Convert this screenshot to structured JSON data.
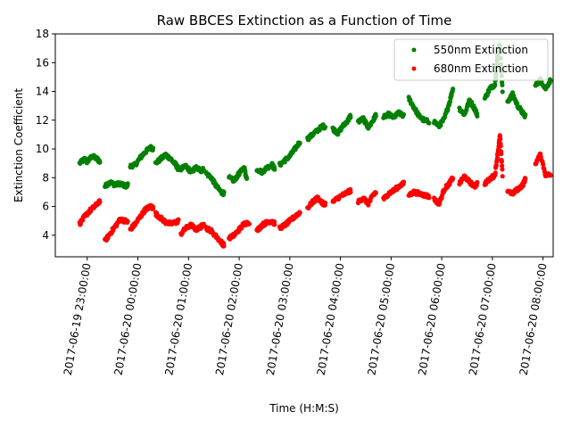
{
  "chart_data": {
    "type": "scatter",
    "title": "Raw BBCES Extinction as a Function of Time",
    "xlabel": "Time (H:M:S)",
    "ylabel": "Extinction Coefficient",
    "x_unit": "hours after 2017-06-19 23:00:00",
    "xlim": [
      -0.63,
      9.2
    ],
    "ylim": [
      2.5,
      18
    ],
    "yticks": [
      4,
      6,
      8,
      10,
      12,
      14,
      16,
      18
    ],
    "xticks": [
      {
        "x": 0,
        "label": "2017-06-19 23:00:00"
      },
      {
        "x": 1,
        "label": "2017-06-20 00:00:00"
      },
      {
        "x": 2,
        "label": "2017-06-20 01:00:00"
      },
      {
        "x": 3,
        "label": "2017-06-20 02:00:00"
      },
      {
        "x": 4,
        "label": "2017-06-20 03:00:00"
      },
      {
        "x": 5,
        "label": "2017-06-20 04:00:00"
      },
      {
        "x": 6,
        "label": "2017-06-20 05:00:00"
      },
      {
        "x": 7,
        "label": "2017-06-20 06:00:00"
      },
      {
        "x": 8,
        "label": "2017-06-20 07:00:00"
      },
      {
        "x": 9,
        "label": "2017-06-20 08:00:00"
      }
    ],
    "legend_position": "top-right",
    "grid": false,
    "series": [
      {
        "name": "550nm Extinction",
        "color": "#008000",
        "marker": "circle",
        "segments": [
          [
            [
              -0.15,
              9.0
            ],
            [
              -0.05,
              9.3
            ],
            [
              0.0,
              9.1
            ],
            [
              0.1,
              9.5
            ],
            [
              0.2,
              9.3
            ],
            [
              0.25,
              9.1
            ]
          ],
          [
            [
              0.35,
              7.4
            ],
            [
              0.45,
              7.7
            ],
            [
              0.55,
              7.5
            ],
            [
              0.65,
              7.6
            ],
            [
              0.75,
              7.4
            ],
            [
              0.8,
              7.5
            ]
          ],
          [
            [
              0.85,
              8.8
            ],
            [
              0.95,
              8.9
            ],
            [
              1.05,
              9.4
            ],
            [
              1.15,
              9.8
            ],
            [
              1.25,
              10.1
            ],
            [
              1.3,
              10.0
            ]
          ],
          [
            [
              1.35,
              9.0
            ],
            [
              1.45,
              9.3
            ],
            [
              1.55,
              9.6
            ],
            [
              1.65,
              9.3
            ],
            [
              1.75,
              8.9
            ],
            [
              1.8,
              8.6
            ]
          ],
          [
            [
              1.85,
              8.6
            ],
            [
              1.95,
              8.8
            ],
            [
              2.05,
              8.4
            ],
            [
              2.15,
              8.7
            ],
            [
              2.25,
              8.5
            ],
            [
              2.3,
              8.6
            ]
          ],
          [
            [
              2.35,
              8.3
            ],
            [
              2.45,
              8.0
            ],
            [
              2.55,
              7.4
            ],
            [
              2.65,
              7.0
            ],
            [
              2.7,
              6.9
            ]
          ],
          [
            [
              2.8,
              8.0
            ],
            [
              2.9,
              7.8
            ],
            [
              3.0,
              8.3
            ],
            [
              3.1,
              8.7
            ],
            [
              3.15,
              7.9
            ]
          ],
          [
            [
              3.35,
              8.6
            ],
            [
              3.45,
              8.4
            ],
            [
              3.55,
              8.7
            ],
            [
              3.65,
              8.9
            ],
            [
              3.7,
              8.6
            ]
          ],
          [
            [
              3.8,
              8.9
            ],
            [
              3.9,
              9.2
            ],
            [
              4.0,
              9.5
            ],
            [
              4.1,
              10.0
            ],
            [
              4.2,
              10.5
            ]
          ],
          [
            [
              4.35,
              10.7
            ],
            [
              4.45,
              11.0
            ],
            [
              4.55,
              11.3
            ],
            [
              4.65,
              11.6
            ],
            [
              4.7,
              11.5
            ]
          ],
          [
            [
              4.85,
              11.4
            ],
            [
              4.95,
              11.1
            ],
            [
              5.05,
              11.6
            ],
            [
              5.15,
              12.0
            ],
            [
              5.2,
              12.3
            ]
          ],
          [
            [
              5.35,
              11.9
            ],
            [
              5.45,
              12.1
            ],
            [
              5.55,
              11.5
            ],
            [
              5.65,
              12.0
            ],
            [
              5.7,
              12.4
            ]
          ],
          [
            [
              5.85,
              12.2
            ],
            [
              5.95,
              12.4
            ],
            [
              6.05,
              12.2
            ],
            [
              6.15,
              12.5
            ],
            [
              6.25,
              12.3
            ]
          ],
          [
            [
              6.35,
              13.5
            ],
            [
              6.45,
              12.9
            ],
            [
              6.55,
              12.3
            ],
            [
              6.65,
              12.0
            ],
            [
              6.75,
              11.9
            ]
          ],
          [
            [
              6.85,
              11.9
            ],
            [
              6.95,
              11.6
            ],
            [
              7.05,
              12.1
            ],
            [
              7.15,
              13.2
            ],
            [
              7.22,
              14.2
            ]
          ],
          [
            [
              7.35,
              12.8
            ],
            [
              7.45,
              12.4
            ],
            [
              7.55,
              13.4
            ],
            [
              7.65,
              12.8
            ],
            [
              7.7,
              12.4
            ]
          ],
          [
            [
              7.85,
              13.5
            ],
            [
              7.95,
              14.2
            ],
            [
              8.05,
              14.5
            ],
            [
              8.1,
              16.5
            ],
            [
              8.15,
              17.3
            ],
            [
              8.2,
              14.0
            ]
          ],
          [
            [
              8.3,
              13.3
            ],
            [
              8.4,
              13.8
            ],
            [
              8.5,
              13.0
            ],
            [
              8.6,
              12.5
            ],
            [
              8.65,
              12.3
            ]
          ],
          [
            [
              8.85,
              14.4
            ],
            [
              8.95,
              14.8
            ],
            [
              9.05,
              14.2
            ],
            [
              9.15,
              14.8
            ]
          ]
        ]
      },
      {
        "name": "680nm Extinction",
        "color": "#ff0000",
        "marker": "circle",
        "segments": [
          [
            [
              -0.15,
              4.8
            ],
            [
              -0.05,
              5.3
            ],
            [
              0.05,
              5.7
            ],
            [
              0.15,
              6.0
            ],
            [
              0.25,
              6.4
            ]
          ],
          [
            [
              0.35,
              3.6
            ],
            [
              0.45,
              4.1
            ],
            [
              0.55,
              4.6
            ],
            [
              0.65,
              5.1
            ],
            [
              0.75,
              5.0
            ],
            [
              0.8,
              4.9
            ]
          ],
          [
            [
              0.85,
              4.4
            ],
            [
              0.95,
              4.8
            ],
            [
              1.05,
              5.3
            ],
            [
              1.15,
              5.8
            ],
            [
              1.25,
              6.0
            ],
            [
              1.3,
              5.9
            ]
          ],
          [
            [
              1.35,
              5.5
            ],
            [
              1.45,
              5.2
            ],
            [
              1.55,
              4.9
            ],
            [
              1.65,
              4.8
            ],
            [
              1.75,
              4.9
            ],
            [
              1.8,
              5.0
            ]
          ],
          [
            [
              1.85,
              4.1
            ],
            [
              1.95,
              4.5
            ],
            [
              2.05,
              4.7
            ],
            [
              2.15,
              4.4
            ],
            [
              2.25,
              4.6
            ],
            [
              2.3,
              4.8
            ]
          ],
          [
            [
              2.35,
              4.5
            ],
            [
              2.45,
              4.3
            ],
            [
              2.55,
              3.9
            ],
            [
              2.65,
              3.5
            ],
            [
              2.7,
              3.3
            ]
          ],
          [
            [
              2.8,
              3.8
            ],
            [
              2.9,
              4.0
            ],
            [
              3.0,
              4.4
            ],
            [
              3.1,
              4.8
            ],
            [
              3.2,
              4.9
            ]
          ],
          [
            [
              3.35,
              4.3
            ],
            [
              3.45,
              4.7
            ],
            [
              3.55,
              4.9
            ],
            [
              3.65,
              5.0
            ],
            [
              3.7,
              4.8
            ]
          ],
          [
            [
              3.8,
              4.5
            ],
            [
              3.9,
              4.7
            ],
            [
              4.0,
              5.0
            ],
            [
              4.1,
              5.3
            ],
            [
              4.2,
              5.6
            ]
          ],
          [
            [
              4.35,
              5.9
            ],
            [
              4.45,
              6.3
            ],
            [
              4.55,
              6.6
            ],
            [
              4.65,
              6.2
            ],
            [
              4.7,
              6.2
            ]
          ],
          [
            [
              4.85,
              6.3
            ],
            [
              4.95,
              6.6
            ],
            [
              5.05,
              6.8
            ],
            [
              5.15,
              7.0
            ],
            [
              5.2,
              7.1
            ]
          ],
          [
            [
              5.35,
              6.3
            ],
            [
              5.45,
              6.6
            ],
            [
              5.55,
              6.2
            ],
            [
              5.65,
              6.8
            ],
            [
              5.7,
              7.0
            ]
          ],
          [
            [
              5.85,
              6.5
            ],
            [
              5.95,
              6.9
            ],
            [
              6.05,
              7.1
            ],
            [
              6.15,
              7.4
            ],
            [
              6.25,
              7.6
            ]
          ],
          [
            [
              6.35,
              6.8
            ],
            [
              6.45,
              7.0
            ],
            [
              6.55,
              6.9
            ],
            [
              6.65,
              6.8
            ],
            [
              6.75,
              6.7
            ]
          ],
          [
            [
              6.85,
              6.5
            ],
            [
              6.95,
              6.2
            ],
            [
              7.05,
              7.2
            ],
            [
              7.15,
              7.6
            ],
            [
              7.22,
              8.0
            ]
          ],
          [
            [
              7.35,
              7.6
            ],
            [
              7.45,
              8.1
            ],
            [
              7.55,
              7.7
            ],
            [
              7.65,
              7.4
            ],
            [
              7.7,
              7.6
            ]
          ],
          [
            [
              7.85,
              7.6
            ],
            [
              7.95,
              7.9
            ],
            [
              8.05,
              8.2
            ],
            [
              8.1,
              9.5
            ],
            [
              8.15,
              10.9
            ],
            [
              8.2,
              8.2
            ]
          ],
          [
            [
              8.3,
              7.1
            ],
            [
              8.4,
              6.9
            ],
            [
              8.5,
              7.2
            ],
            [
              8.6,
              7.5
            ],
            [
              8.65,
              7.9
            ]
          ],
          [
            [
              8.85,
              9.0
            ],
            [
              8.95,
              9.6
            ],
            [
              9.05,
              8.2
            ],
            [
              9.15,
              8.2
            ]
          ]
        ]
      }
    ]
  }
}
